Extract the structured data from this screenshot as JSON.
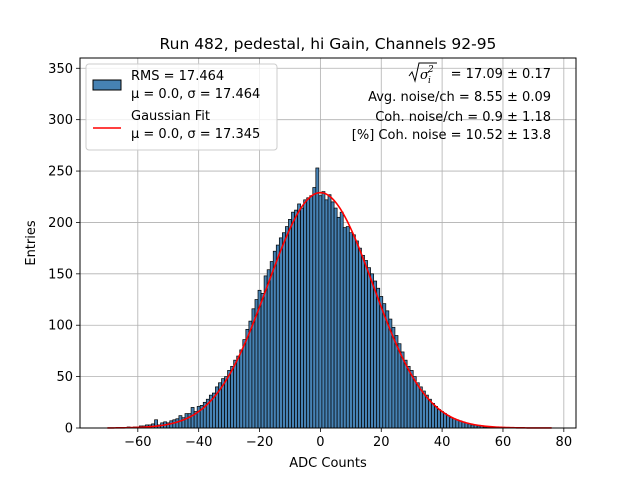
{
  "chart_data": {
    "type": "bar",
    "title": "Run 482, pedestal, hi Gain, Channels 92-95",
    "xlabel": "ADC Counts",
    "ylabel": "Entries",
    "xlim": [
      -79,
      84
    ],
    "ylim": [
      0,
      360
    ],
    "xticks": [
      "−60",
      "−40",
      "−20",
      "0",
      "20",
      "40",
      "60",
      "80"
    ],
    "xtick_values": [
      -60,
      -40,
      -20,
      0,
      20,
      40,
      60,
      80
    ],
    "yticks": [
      "0",
      "50",
      "100",
      "150",
      "200",
      "250",
      "300",
      "350"
    ],
    "ytick_values": [
      0,
      50,
      100,
      150,
      200,
      250,
      300,
      350
    ],
    "grid": true,
    "histogram": {
      "name_lines": [
        "RMS = 17.464",
        "μ = 0.0, σ = 17.464"
      ],
      "color": "#4682b4",
      "edge_color": "#000000",
      "bin_width": 1,
      "x": [
        -70,
        -69,
        -68,
        -67,
        -66,
        -65,
        -64,
        -63,
        -62,
        -61,
        -60,
        -59,
        -58,
        -57,
        -56,
        -55,
        -54,
        -53,
        -52,
        -51,
        -50,
        -49,
        -48,
        -47,
        -46,
        -45,
        -44,
        -43,
        -42,
        -41,
        -40,
        -39,
        -38,
        -37,
        -36,
        -35,
        -34,
        -33,
        -32,
        -31,
        -30,
        -29,
        -28,
        -27,
        -26,
        -25,
        -24,
        -23,
        -22,
        -21,
        -20,
        -19,
        -18,
        -17,
        -16,
        -15,
        -14,
        -13,
        -12,
        -11,
        -10,
        -9,
        -8,
        -7,
        -6,
        -5,
        -4,
        -3,
        -2,
        -1,
        0,
        1,
        2,
        3,
        4,
        5,
        6,
        7,
        8,
        9,
        10,
        11,
        12,
        13,
        14,
        15,
        16,
        17,
        18,
        19,
        20,
        21,
        22,
        23,
        24,
        25,
        26,
        27,
        28,
        29,
        30,
        31,
        32,
        33,
        34,
        35,
        36,
        37,
        38,
        39,
        40,
        41,
        42,
        43,
        44,
        45,
        46,
        47,
        48,
        49,
        50,
        51,
        52,
        53,
        54,
        55,
        56,
        57,
        58,
        59,
        60,
        61,
        62,
        63,
        64,
        65,
        66,
        67,
        68,
        69,
        70,
        71,
        72,
        73,
        74,
        75,
        76
      ],
      "values": [
        0,
        0,
        0,
        0,
        0,
        0,
        0,
        1,
        0,
        1,
        1,
        2,
        2,
        3,
        3,
        4,
        8,
        3,
        5,
        6,
        5,
        7,
        8,
        9,
        12,
        10,
        14,
        14,
        20,
        16,
        21,
        22,
        25,
        28,
        32,
        34,
        40,
        44,
        48,
        50,
        56,
        60,
        66,
        70,
        76,
        86,
        96,
        104,
        116,
        125,
        134,
        131,
        148,
        154,
        162,
        172,
        178,
        185,
        190,
        196,
        203,
        210,
        212,
        218,
        214,
        222,
        224,
        226,
        234,
        253,
        226,
        230,
        222,
        227,
        220,
        214,
        205,
        210,
        195,
        196,
        190,
        188,
        182,
        175,
        168,
        163,
        156,
        150,
        143,
        136,
        128,
        121,
        114,
        106,
        98,
        90,
        82,
        74,
        66,
        60,
        56,
        50,
        44,
        40,
        36,
        32,
        28,
        24,
        21,
        18,
        16,
        14,
        12,
        10,
        9,
        8,
        7,
        6,
        5,
        4,
        3,
        3,
        2,
        2,
        1,
        1,
        1,
        1,
        0,
        0,
        0,
        0,
        0,
        0,
        0,
        0,
        0,
        0,
        0,
        0,
        0,
        0,
        0,
        0,
        0,
        0,
        0
      ]
    },
    "fit": {
      "name_lines": [
        "Gaussian Fit",
        "μ = 0.0, σ = 17.345"
      ],
      "color": "#ff0000",
      "mu": 0.0,
      "sigma": 17.345,
      "amplitude": 229,
      "x_range": [
        -70,
        76
      ]
    },
    "legend_position": "upper left",
    "annotations": {
      "line1_suffix": " = 17.09 ± 0.17",
      "line2": "Avg. noise/ch = 8.55 ± 0.09",
      "line3": "Coh. noise/ch = 0.9 ± 1.18",
      "line4": "[%] Coh. noise = 10.52 ± 13.8"
    }
  }
}
